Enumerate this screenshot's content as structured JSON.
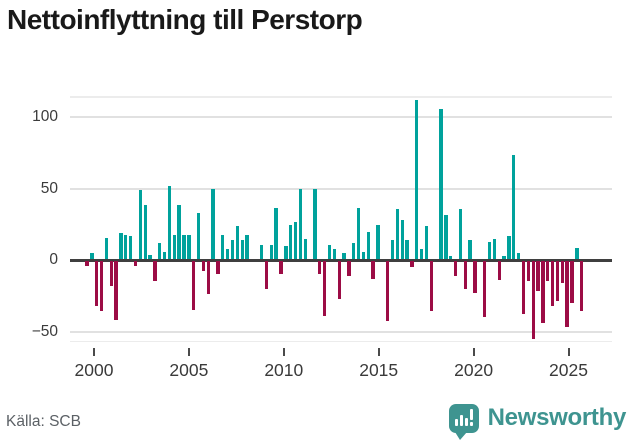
{
  "title": "Nettoinflyttning till Perstorp",
  "source": "Källa: SCB",
  "branding": {
    "name": "Newsworthy",
    "icon": "speech-bubble-bar-chart-icon",
    "color": "#3e9490"
  },
  "chart_data": {
    "type": "bar",
    "title": "Nettoinflyttning till Perstorp",
    "frequency": "quarterly",
    "x_start": "2000-Q1",
    "x_end": "2025-Q3",
    "xlabel": "",
    "ylabel": "",
    "grid": "horizontal",
    "legend": "none",
    "ylim": [
      -56,
      115
    ],
    "positive_color": "#00a29c",
    "negative_color": "#9c0c45",
    "y_ticks": [
      {
        "label": "100",
        "value": 100
      },
      {
        "label": "50",
        "value": 50
      },
      {
        "label": "0",
        "value": 0
      },
      {
        "label": "−50",
        "value": -50
      }
    ],
    "x_tick_labels": [
      "2000",
      "2005",
      "2010",
      "2015",
      "2020",
      "2025"
    ],
    "series": [
      {
        "name": "Nettoinflyttning",
        "values": [
          -3,
          4,
          -31,
          -35,
          15,
          -17,
          -41,
          18,
          17,
          16,
          -3,
          48,
          38,
          3,
          -14,
          11,
          5,
          51,
          17,
          38,
          17,
          17,
          -34,
          32,
          -7,
          -23,
          49,
          -9,
          17,
          7,
          13,
          23,
          13,
          17,
          0,
          0,
          10,
          -19,
          10,
          36,
          -9,
          9,
          24,
          26,
          49,
          14,
          0,
          49,
          -9,
          -38,
          10,
          7,
          -26,
          4,
          -10,
          11,
          36,
          5,
          19,
          -12,
          24,
          0,
          -42,
          13,
          35,
          27,
          13,
          -4,
          111,
          7,
          23,
          -35,
          0,
          105,
          31,
          2,
          -10,
          35,
          -19,
          13,
          -22,
          0,
          -39,
          12,
          14,
          -13,
          2,
          16,
          73,
          4,
          -37,
          -14,
          -54,
          -21,
          -43,
          -14,
          -31,
          -28,
          -15,
          -46,
          -29,
          8,
          -35
        ]
      }
    ]
  }
}
